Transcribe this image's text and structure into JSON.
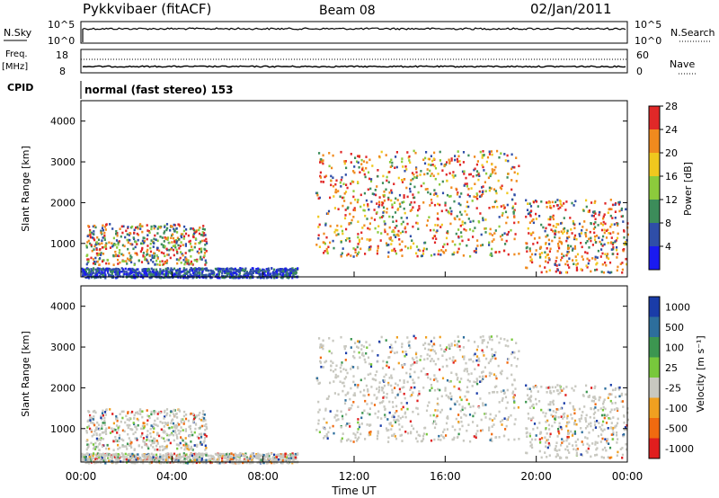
{
  "header": {
    "station": "Pykkvibaer (fitACF)",
    "beam": "Beam 08",
    "date": "02/Jan/2011"
  },
  "mode": {
    "label": "normal (fast stereo) 153"
  },
  "noise_panel": {
    "left_label": "N.Sky",
    "right_label": "N.Search",
    "ticks_left": [
      "10^5",
      "10^0"
    ],
    "ticks_right": [
      "10^5",
      "10^0"
    ]
  },
  "freq_panel": {
    "left_label": "Freq.",
    "left_unit": "[MHz]",
    "ticks_left": [
      "18",
      "8"
    ],
    "right_label": "Nave",
    "ticks_right": [
      "60",
      "0"
    ]
  },
  "cpid_label": "CPID",
  "chart_data": [
    {
      "type": "heatmap",
      "name": "power",
      "ylabel": "Slant Range [km]",
      "ylim": [
        180,
        4500
      ],
      "yticks": [
        "1000",
        "2000",
        "3000",
        "4000"
      ],
      "xlim_hours": [
        0,
        24
      ],
      "colorbar": {
        "label": "Power [dB]",
        "ticks": [
          "4",
          "8",
          "12",
          "16",
          "20",
          "24",
          "28"
        ],
        "colors": [
          "#1a1af0",
          "#2f4ea8",
          "#3c8c5a",
          "#8ccb3c",
          "#f0c81e",
          "#f08a1e",
          "#e02828"
        ]
      }
    },
    {
      "type": "heatmap",
      "name": "velocity",
      "ylabel": "Slant Range [km]",
      "ylim": [
        180,
        4500
      ],
      "yticks": [
        "1000",
        "2000",
        "3000",
        "4000"
      ],
      "xlim_hours": [
        0,
        24
      ],
      "xlabel": "Time UT",
      "xticks": [
        "00:00",
        "04:00",
        "08:00",
        "12:00",
        "16:00",
        "20:00",
        "00:00"
      ],
      "colorbar": {
        "label": "Velocity [m s⁻¹]",
        "ticks": [
          "1000",
          "500",
          "100",
          "25",
          "-25",
          "-100",
          "-500",
          "-1000"
        ],
        "colors": [
          "#1a3ca8",
          "#2d6e9c",
          "#3c9650",
          "#78c83c",
          "#c8c8c0",
          "#f0a020",
          "#f06a10",
          "#e01e1e"
        ]
      }
    }
  ]
}
